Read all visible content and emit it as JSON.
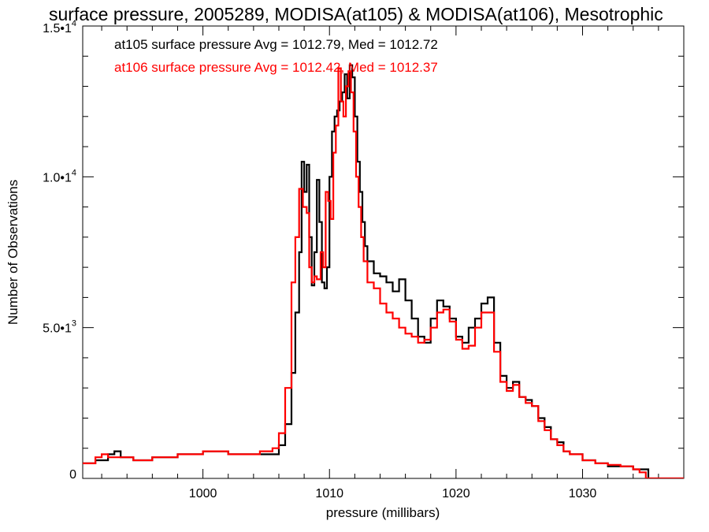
{
  "chart_data": {
    "type": "line",
    "title": "surface pressure, 2005289, MODISA(at105) & MODISA(at106), Mesotrophic",
    "xlabel": "pressure (millibars)",
    "ylabel": "Number of Observations",
    "xlim": [
      990.5,
      1038
    ],
    "ylim": [
      0,
      15000
    ],
    "x_ticks": [
      {
        "value": 1000,
        "label": "1000"
      },
      {
        "value": 1010,
        "label": "1010"
      },
      {
        "value": 1020,
        "label": "1020"
      },
      {
        "value": 1030,
        "label": "1030"
      }
    ],
    "y_ticks": [
      {
        "value": 0,
        "mantissa": "0",
        "exponent": ""
      },
      {
        "value": 5000,
        "mantissa": "5.0•1",
        "exponent": "3"
      },
      {
        "value": 10000,
        "mantissa": "1.0•1",
        "exponent": "4"
      },
      {
        "value": 15000,
        "mantissa": "1.5•1",
        "exponent": "4"
      }
    ],
    "annotations": [
      {
        "text": "at105 surface pressure Avg = 1012.79, Med = 1012.72",
        "color": "#000000"
      },
      {
        "text": "at106 surface pressure Avg = 1012.42, Med = 1012.37",
        "color": "#ff0000"
      }
    ],
    "series": [
      {
        "color": "#000000",
        "points": [
          [
            990.5,
            500
          ],
          [
            991.5,
            600
          ],
          [
            992.5,
            800
          ],
          [
            993.0,
            900
          ],
          [
            993.5,
            700
          ],
          [
            994.5,
            600
          ],
          [
            996,
            700
          ],
          [
            998,
            800
          ],
          [
            1000,
            900
          ],
          [
            1002,
            800
          ],
          [
            1003.5,
            800
          ],
          [
            1005,
            800
          ],
          [
            1006,
            1100
          ],
          [
            1006.5,
            1800
          ],
          [
            1007,
            3500
          ],
          [
            1007.3,
            5500
          ],
          [
            1007.6,
            7500
          ],
          [
            1007.8,
            10500
          ],
          [
            1008.0,
            9500
          ],
          [
            1008.2,
            10400
          ],
          [
            1008.4,
            8000
          ],
          [
            1008.6,
            6400
          ],
          [
            1008.8,
            7500
          ],
          [
            1009.0,
            9900
          ],
          [
            1009.2,
            8500
          ],
          [
            1009.4,
            6500
          ],
          [
            1009.6,
            6300
          ],
          [
            1009.8,
            7000
          ],
          [
            1010.0,
            10000
          ],
          [
            1010.2,
            11500
          ],
          [
            1010.4,
            12000
          ],
          [
            1010.6,
            12200
          ],
          [
            1010.8,
            12500
          ],
          [
            1011.0,
            12800
          ],
          [
            1011.2,
            13400
          ],
          [
            1011.4,
            12600
          ],
          [
            1011.6,
            13700
          ],
          [
            1011.8,
            13300
          ],
          [
            1012.0,
            12000
          ],
          [
            1012.2,
            10500
          ],
          [
            1012.4,
            9500
          ],
          [
            1012.6,
            8500
          ],
          [
            1012.8,
            7700
          ],
          [
            1013.0,
            7200
          ],
          [
            1013.5,
            6800
          ],
          [
            1014.0,
            6700
          ],
          [
            1014.5,
            6500
          ],
          [
            1015.0,
            6200
          ],
          [
            1015.5,
            6600
          ],
          [
            1016.0,
            5900
          ],
          [
            1016.5,
            5300
          ],
          [
            1017.0,
            4700
          ],
          [
            1017.5,
            4500
          ],
          [
            1018.0,
            5300
          ],
          [
            1018.5,
            5900
          ],
          [
            1019.0,
            5700
          ],
          [
            1019.5,
            5300
          ],
          [
            1020.0,
            4700
          ],
          [
            1020.5,
            4500
          ],
          [
            1021.0,
            5000
          ],
          [
            1021.5,
            5300
          ],
          [
            1022.0,
            5800
          ],
          [
            1022.5,
            6000
          ],
          [
            1023.0,
            4500
          ],
          [
            1023.5,
            3400
          ],
          [
            1024.0,
            3000
          ],
          [
            1024.5,
            3200
          ],
          [
            1025.0,
            2700
          ],
          [
            1025.5,
            2600
          ],
          [
            1026.0,
            2400
          ],
          [
            1026.5,
            2000
          ],
          [
            1027.0,
            1700
          ],
          [
            1027.5,
            1300
          ],
          [
            1028.0,
            1200
          ],
          [
            1028.5,
            900
          ],
          [
            1029.0,
            800
          ],
          [
            1030.0,
            600
          ],
          [
            1031.0,
            500
          ],
          [
            1032.0,
            400
          ],
          [
            1033.0,
            400
          ],
          [
            1034.0,
            300
          ],
          [
            1034.8,
            300
          ],
          [
            1035.2,
            0
          ],
          [
            1038.0,
            0
          ]
        ]
      },
      {
        "color": "#ff0000",
        "points": [
          [
            990.5,
            500
          ],
          [
            991.5,
            700
          ],
          [
            992.0,
            800
          ],
          [
            992.5,
            700
          ],
          [
            994.5,
            600
          ],
          [
            996,
            700
          ],
          [
            998,
            800
          ],
          [
            1000,
            900
          ],
          [
            1002,
            800
          ],
          [
            1003.5,
            800
          ],
          [
            1004.5,
            900
          ],
          [
            1005.5,
            1000
          ],
          [
            1006,
            1500
          ],
          [
            1006.5,
            3000
          ],
          [
            1007.0,
            6500
          ],
          [
            1007.3,
            8000
          ],
          [
            1007.6,
            9600
          ],
          [
            1007.9,
            9000
          ],
          [
            1008.2,
            8800
          ],
          [
            1008.4,
            7000
          ],
          [
            1008.6,
            6500
          ],
          [
            1008.8,
            6700
          ],
          [
            1009.0,
            6600
          ],
          [
            1009.3,
            7500
          ],
          [
            1009.5,
            7000
          ],
          [
            1009.7,
            9500
          ],
          [
            1009.9,
            9200
          ],
          [
            1010.1,
            8600
          ],
          [
            1010.3,
            10800
          ],
          [
            1010.5,
            11700
          ],
          [
            1010.7,
            13600
          ],
          [
            1010.9,
            12500
          ],
          [
            1011.1,
            12000
          ],
          [
            1011.3,
            13000
          ],
          [
            1011.5,
            13500
          ],
          [
            1011.7,
            12800
          ],
          [
            1011.9,
            11500
          ],
          [
            1012.1,
            10000
          ],
          [
            1012.3,
            9000
          ],
          [
            1012.5,
            8000
          ],
          [
            1012.7,
            7200
          ],
          [
            1013.0,
            6500
          ],
          [
            1013.5,
            6300
          ],
          [
            1014.0,
            5800
          ],
          [
            1014.5,
            5500
          ],
          [
            1015.0,
            5300
          ],
          [
            1015.5,
            5000
          ],
          [
            1016.0,
            4800
          ],
          [
            1016.5,
            4700
          ],
          [
            1017.0,
            4500
          ],
          [
            1017.5,
            4600
          ],
          [
            1018.0,
            5000
          ],
          [
            1018.5,
            5500
          ],
          [
            1019.0,
            5600
          ],
          [
            1019.5,
            5200
          ],
          [
            1020.0,
            4600
          ],
          [
            1020.5,
            4300
          ],
          [
            1021.0,
            4400
          ],
          [
            1021.5,
            5000
          ],
          [
            1022.0,
            5500
          ],
          [
            1022.5,
            5500
          ],
          [
            1023.0,
            4200
          ],
          [
            1023.5,
            3200
          ],
          [
            1024.0,
            2900
          ],
          [
            1024.5,
            3100
          ],
          [
            1025.0,
            2700
          ],
          [
            1025.5,
            2500
          ],
          [
            1026.0,
            2400
          ],
          [
            1026.5,
            1900
          ],
          [
            1027.0,
            1600
          ],
          [
            1027.5,
            1300
          ],
          [
            1028.0,
            1100
          ],
          [
            1028.5,
            900
          ],
          [
            1029.0,
            800
          ],
          [
            1030.0,
            600
          ],
          [
            1031.0,
            500
          ],
          [
            1032.0,
            450
          ],
          [
            1033.0,
            400
          ],
          [
            1034.0,
            300
          ],
          [
            1034.5,
            200
          ],
          [
            1035.0,
            0
          ],
          [
            1038.0,
            0
          ]
        ]
      }
    ]
  }
}
